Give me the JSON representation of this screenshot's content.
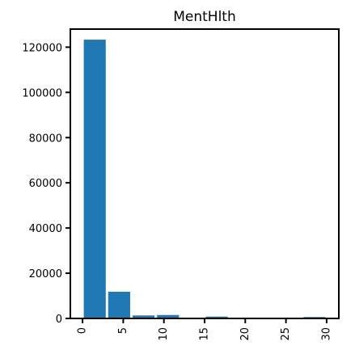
{
  "chart_data": {
    "type": "bar",
    "title": "MentHlth",
    "xlabel": "",
    "ylabel": "",
    "bins": [
      {
        "x0": 0,
        "x1": 3,
        "value": 123500
      },
      {
        "x0": 3,
        "x1": 6,
        "value": 12000
      },
      {
        "x0": 6,
        "x1": 9,
        "value": 1500
      },
      {
        "x0": 9,
        "x1": 12,
        "value": 1700
      },
      {
        "x0": 12,
        "x1": 15,
        "value": 150
      },
      {
        "x0": 15,
        "x1": 18,
        "value": 1000
      },
      {
        "x0": 18,
        "x1": 21,
        "value": 300
      },
      {
        "x0": 21,
        "x1": 24,
        "value": 100
      },
      {
        "x0": 24,
        "x1": 27,
        "value": 200
      },
      {
        "x0": 27,
        "x1": 30,
        "value": 800
      }
    ],
    "xlim": [
      -1.5,
      31.5
    ],
    "ylim": [
      0,
      128000
    ],
    "x_ticks": [
      0,
      5,
      10,
      15,
      20,
      25,
      30
    ],
    "y_ticks": [
      0,
      20000,
      40000,
      60000,
      80000,
      100000,
      120000
    ],
    "bar_color": "#1f77b4",
    "grid": false
  }
}
